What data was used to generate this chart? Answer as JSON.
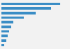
{
  "values": [
    170,
    145,
    100,
    65,
    35,
    28,
    22,
    18,
    14,
    8
  ],
  "bar_color": "#3a8dc5",
  "background_color": "#f2f2f2",
  "fig_background": "#f2f2f2",
  "grid_color": "#ffffff",
  "xlim": [
    0,
    195
  ],
  "bar_height": 0.55
}
